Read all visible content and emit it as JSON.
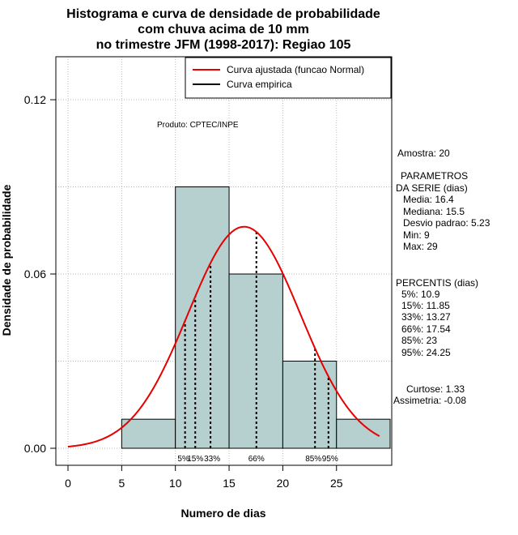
{
  "chart_data": {
    "type": "bar",
    "title": [
      "Histograma e curva de densidade de probabilidade",
      "com chuva acima de 10 mm",
      "no trimestre JFM (1998-2017): Regiao 105"
    ],
    "xlabel": "Numero de dias",
    "ylabel": "Densidade de probabilidade",
    "xlim": [
      -1.5,
      30
    ],
    "ylim": [
      -0.005,
      0.133
    ],
    "x_ticks": [
      0,
      5,
      10,
      15,
      20,
      25
    ],
    "y_ticks": [
      0.0,
      0.06,
      0.12
    ],
    "y_tick_labels": [
      "0.00",
      "0.06",
      "0.12"
    ],
    "bins": [
      {
        "from": 5,
        "to": 10,
        "density": 0.01
      },
      {
        "from": 10,
        "to": 15,
        "density": 0.09
      },
      {
        "from": 15,
        "to": 20,
        "density": 0.06
      },
      {
        "from": 20,
        "to": 25,
        "density": 0.03
      },
      {
        "from": 25,
        "to": 30,
        "density": 0.01
      }
    ],
    "fitted_curve": {
      "distribution": "Normal",
      "mean": 16.4,
      "sd": 5.23,
      "x_range": [
        0,
        29
      ]
    },
    "legend": [
      "Curva ajustada (funcao Normal)",
      "Curva empirica"
    ],
    "percentiles": [
      {
        "label": "5%",
        "value": 10.9
      },
      {
        "label": "15%",
        "value": 11.85
      },
      {
        "label": "33%",
        "value": 13.27
      },
      {
        "label": "66%",
        "value": 17.54
      },
      {
        "label": "85%",
        "value": 23
      },
      {
        "label": "95%",
        "value": 24.25
      }
    ],
    "colors": {
      "bar_fill": "#b6cfcf",
      "curve": "#e60000",
      "grid": "#bbbbbb"
    }
  },
  "credit": "Produto: CPTEC/INPE",
  "stats": {
    "sample": "Amostra: 20",
    "params_header_1": "PARAMETROS",
    "params_header_2": "DA SERIE (dias)",
    "media": "Media: 16.4",
    "mediana": "Mediana: 15.5",
    "desvio": "Desvio padrao: 5.23",
    "min": "Min: 9",
    "max": "Max: 29",
    "percentis_header": "PERCENTIS (dias)",
    "p5": "5%: 10.9",
    "p15": "15%: 11.85",
    "p33": "33%: 13.27",
    "p66": "66%: 17.54",
    "p85": "85%: 23",
    "p95": "95%: 24.25",
    "curtose": "Curtose: 1.33",
    "assimetria": "Assimetria: -0.08"
  }
}
